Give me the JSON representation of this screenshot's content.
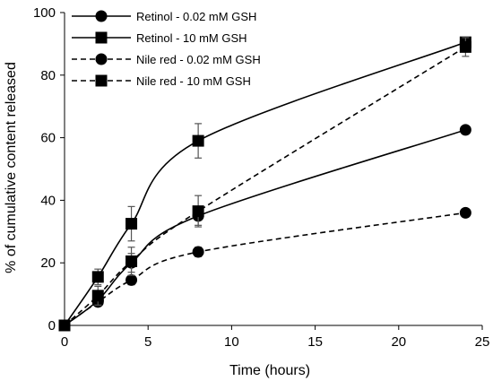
{
  "chart_data": {
    "type": "line",
    "title": "",
    "xlabel": "Time (hours)",
    "ylabel": "% of cumulative content released",
    "xlim": [
      0,
      25
    ],
    "ylim": [
      0,
      100
    ],
    "xticks": [
      "0",
      "5",
      "10",
      "15",
      "20",
      "25"
    ],
    "yticks": [
      "0",
      "20",
      "40",
      "60",
      "80",
      "100"
    ],
    "grid": false,
    "legend_position": "top-left",
    "series": [
      {
        "name": "Retinol - 0.02 mM GSH",
        "line_style": "solid",
        "marker": "circle",
        "color": "#000000",
        "x": [
          0,
          2,
          4,
          8,
          24
        ],
        "y": [
          0,
          8,
          20,
          35,
          62.5
        ],
        "err": [
          0,
          1.5,
          3,
          3,
          1
        ]
      },
      {
        "name": "Retinol - 10 mM GSH",
        "line_style": "solid",
        "marker": "square",
        "color": "#000000",
        "x": [
          0,
          2,
          4,
          8,
          24
        ],
        "y": [
          0,
          15.5,
          32.5,
          59,
          90.5
        ],
        "err": [
          0,
          2.5,
          5.5,
          5.5,
          1
        ]
      },
      {
        "name": "Nile red - 0.02 mM GSH",
        "line_style": "dashed",
        "marker": "circle",
        "color": "#000000",
        "x": [
          0,
          2,
          4,
          8,
          24
        ],
        "y": [
          0,
          7.5,
          14.5,
          23.5,
          36
        ],
        "err": [
          0,
          1,
          1.5,
          1.5,
          1
        ]
      },
      {
        "name": "Nile red - 10 mM GSH",
        "line_style": "dashed",
        "marker": "square",
        "color": "#000000",
        "x": [
          0,
          2,
          4,
          8,
          24
        ],
        "y": [
          0,
          9.5,
          20.5,
          36.5,
          89
        ],
        "err": [
          0,
          3,
          4.5,
          5,
          3
        ]
      }
    ]
  }
}
